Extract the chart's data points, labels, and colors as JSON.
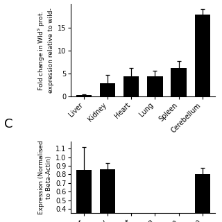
{
  "top_chart": {
    "categories": [
      "Liver",
      "Kidney",
      "Heart",
      "Lung",
      "Spleen",
      "Cerebellum"
    ],
    "values": [
      0.3,
      3.0,
      4.4,
      4.4,
      6.2,
      17.8
    ],
    "errors": [
      0.2,
      1.8,
      1.8,
      1.2,
      1.5,
      1.2
    ],
    "ylim": [
      0,
      20
    ],
    "yticks": [
      0,
      5,
      10,
      15
    ],
    "bar_color": "#000000",
    "bar_width": 0.65,
    "ylabel": "Fold change in Wld$^S$ prot.\nexpression relative to wild-"
  },
  "bottom_chart": {
    "categories": [
      "Liver",
      "Kidney",
      "Heart",
      "Lung",
      "Spleen",
      "Cerebellum"
    ],
    "values": [
      0.85,
      0.86,
      null,
      null,
      null,
      0.8
    ],
    "errors": [
      0.27,
      0.07,
      null,
      null,
      null,
      0.08
    ],
    "ylabel": "Expression (Normalised\nto Beta-Actin)",
    "ylim": [
      0.35,
      1.18
    ],
    "yticks": [
      0.4,
      0.5,
      0.6,
      0.7,
      0.8,
      0.9,
      1.0,
      1.1
    ],
    "bar_color": "#000000",
    "bar_width": 0.65,
    "panel_label": "C"
  }
}
